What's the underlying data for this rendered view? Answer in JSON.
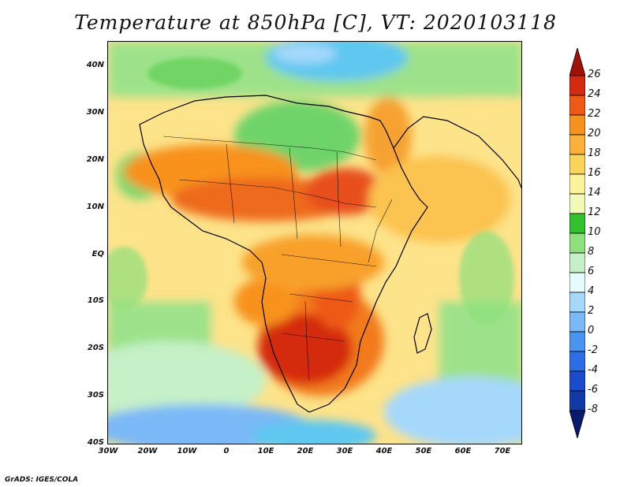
{
  "title": "Temperature at 850hPa [C], VT: 2020103118",
  "footer": "GrADS: IGES/COLA",
  "map": {
    "lat_labels": [
      "40N",
      "30N",
      "20N",
      "10N",
      "EQ",
      "10S",
      "20S",
      "30S",
      "40S"
    ],
    "lon_labels": [
      "30W",
      "20W",
      "10W",
      "0",
      "10E",
      "20E",
      "30E",
      "40E",
      "50E",
      "60E",
      "70E"
    ],
    "extent": {
      "lon_min": -30,
      "lon_max": 75,
      "lat_min": -40,
      "lat_max": 45
    }
  },
  "colorbar": {
    "labels": [
      "26",
      "24",
      "22",
      "20",
      "18",
      "16",
      "14",
      "12",
      "10",
      "8",
      "6",
      "4",
      "2",
      "0",
      "-2",
      "-4",
      "-6",
      "-8"
    ],
    "colors": [
      "#a01208",
      "#d42a10",
      "#ee5a16",
      "#f8921e",
      "#fbb03a",
      "#fbd45a",
      "#fef39a",
      "#f3fab6",
      "#33c130",
      "#8ee07c",
      "#c5f0c8",
      "#e6fbfb",
      "#a6d8fc",
      "#7ab8f8",
      "#4b95f0",
      "#2d6ee6",
      "#1c4ccd",
      "#123aa4",
      "#0a1a6e"
    ]
  }
}
